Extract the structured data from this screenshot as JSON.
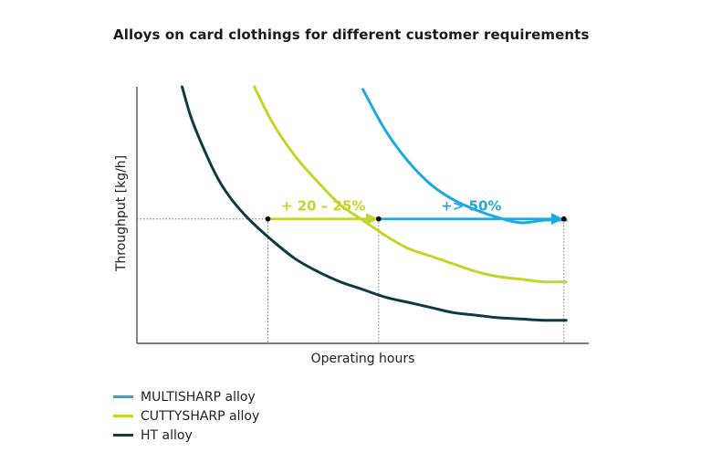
{
  "title": "Alloys on card clothings for different customer requirements",
  "chart_data": {
    "type": "line",
    "title": "Alloys on card clothings for different customer requirements",
    "xlabel": "Operating hours",
    "ylabel": "Throughput [kg/h]",
    "xlim": [
      0,
      100
    ],
    "ylim": [
      0,
      100
    ],
    "grid": false,
    "legend_position": "bottom-left",
    "series": [
      {
        "name": "MULTISHARP alloy",
        "color": "#1fa9e1",
        "x": [
          50,
          55,
          60,
          65,
          70,
          75,
          80,
          85,
          90,
          95
        ],
        "y": [
          99,
          83,
          71,
          62,
          56,
          52,
          49,
          47,
          48,
          48
        ]
      },
      {
        "name": "CUTTYSHARP alloy",
        "color": "#c5d42a",
        "x": [
          26,
          30,
          35,
          40,
          45,
          50,
          55,
          60,
          65,
          70,
          75,
          80,
          85,
          90,
          95
        ],
        "y": [
          100,
          86,
          73,
          63,
          54,
          48,
          42,
          37,
          34,
          31,
          28,
          26,
          25,
          24,
          24
        ]
      },
      {
        "name": "HT alloy",
        "color": "#0e3a44",
        "x": [
          10,
          12,
          15,
          18,
          21,
          25,
          30,
          35,
          40,
          45,
          50,
          55,
          60,
          65,
          70,
          75,
          80,
          85,
          90,
          95
        ],
        "y": [
          100,
          88,
          75,
          64,
          56,
          48,
          40,
          33,
          28,
          24,
          21,
          18,
          16,
          14,
          12,
          11,
          10,
          9.5,
          9,
          9
        ]
      }
    ],
    "annotations": [
      {
        "text": "+ 20 – 25%",
        "color": "#c5d42a",
        "from": [
          29,
          48.5
        ],
        "to": [
          53.5,
          48.5
        ]
      },
      {
        "text": "+> 50%",
        "color": "#1fa9e1",
        "from": [
          53.5,
          48.5
        ],
        "to": [
          94.5,
          48.5
        ]
      }
    ],
    "reference_points": [
      {
        "x": 29,
        "y": 48.5
      },
      {
        "x": 53.5,
        "y": 48.5
      },
      {
        "x": 94.5,
        "y": 48.5
      }
    ]
  }
}
